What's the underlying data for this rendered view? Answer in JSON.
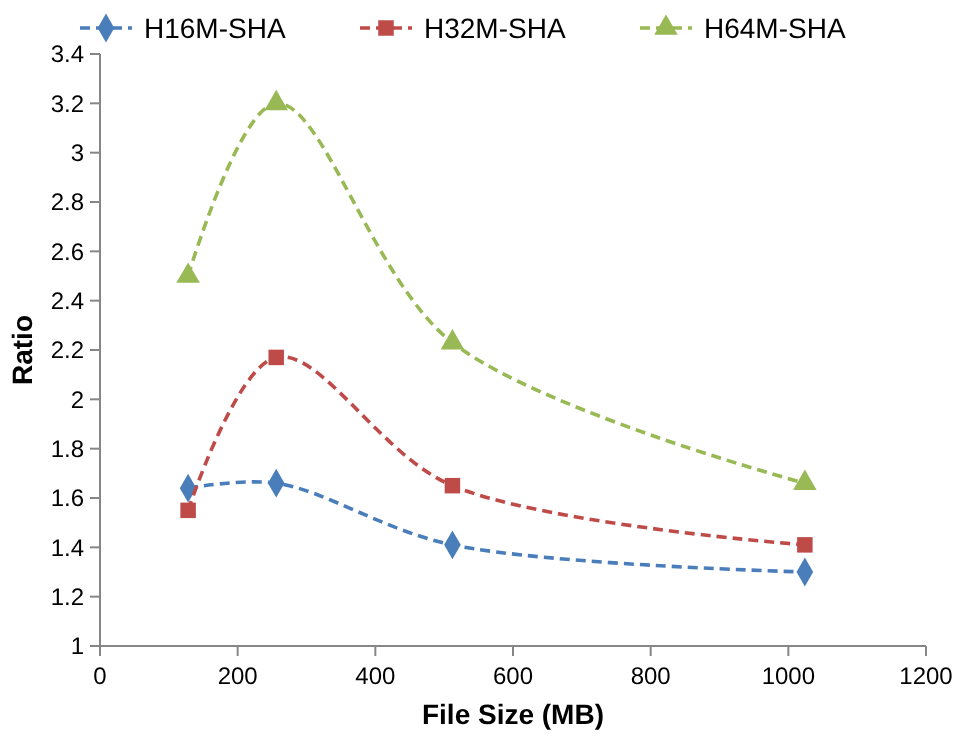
{
  "chart_data": {
    "type": "line",
    "xlabel": "File Size (MB)",
    "ylabel": "Ratio",
    "x": [
      128,
      256,
      512,
      1024
    ],
    "series": [
      {
        "name": "H16M-SHA",
        "color": "#4a7ebb",
        "marker": "diamond",
        "values": [
          1.64,
          1.66,
          1.41,
          1.3
        ]
      },
      {
        "name": "H32M-SHA",
        "color": "#be4b48",
        "marker": "square",
        "values": [
          1.55,
          2.17,
          1.65,
          1.41
        ]
      },
      {
        "name": "H64M-SHA",
        "color": "#98b954",
        "marker": "triangle",
        "values": [
          2.5,
          3.2,
          2.23,
          1.66
        ]
      }
    ],
    "xlim": [
      0,
      1200
    ],
    "xticks": [
      0,
      200,
      400,
      600,
      800,
      1000,
      1200
    ],
    "ylim": [
      1,
      3.4
    ],
    "yticks": [
      1,
      {
        "value": 1.2,
        "label": "1.2"
      },
      {
        "value": 1.4,
        "label": "1.4"
      },
      {
        "value": 1.6,
        "label": "1.6"
      },
      {
        "value": 1.8,
        "label": "1.8"
      },
      2,
      {
        "value": 2.2,
        "label": "2.2"
      },
      {
        "value": 2.4,
        "label": "2.4"
      },
      {
        "value": 2.6,
        "label": "2.6"
      },
      {
        "value": 2.8,
        "label": "2.8"
      },
      3,
      {
        "value": 3.2,
        "label": "3.2"
      },
      {
        "value": 3.4,
        "label": "3.4"
      }
    ],
    "line_style": "dashed",
    "legend": "top"
  }
}
